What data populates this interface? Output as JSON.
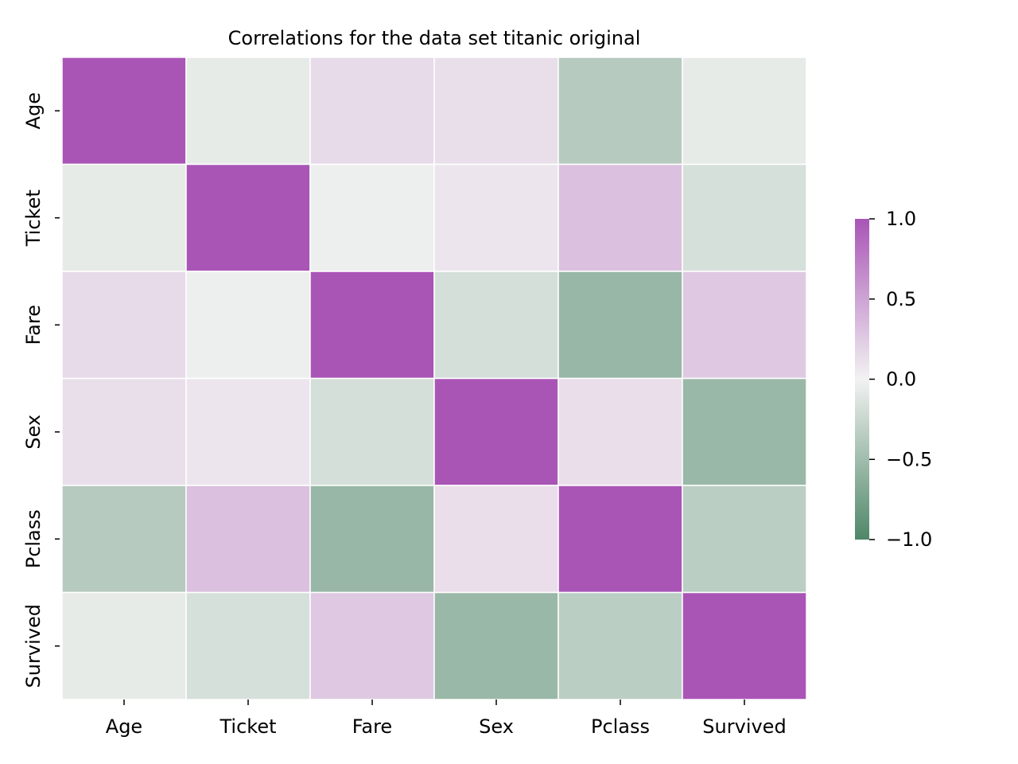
{
  "chart_data": {
    "type": "heatmap",
    "title": "Correlations for the data set titanic original",
    "row_labels": [
      "Age",
      "Ticket",
      "Fare",
      "Sex",
      "Pclass",
      "Survived"
    ],
    "col_labels": [
      "Age",
      "Ticket",
      "Fare",
      "Sex",
      "Pclass",
      "Survived"
    ],
    "values": [
      [
        1.0,
        -0.07,
        0.15,
        0.12,
        -0.37,
        -0.07
      ],
      [
        -0.07,
        1.0,
        -0.03,
        0.08,
        0.32,
        -0.17
      ],
      [
        0.15,
        -0.03,
        1.0,
        -0.18,
        -0.55,
        0.26
      ],
      [
        0.12,
        0.08,
        -0.18,
        1.0,
        0.13,
        -0.54
      ],
      [
        -0.37,
        0.32,
        -0.55,
        0.13,
        1.0,
        -0.34
      ],
      [
        -0.07,
        -0.17,
        0.26,
        -0.54,
        -0.34,
        1.0
      ]
    ],
    "vmin": -1.0,
    "vmax": 1.0,
    "colormap": {
      "negative": "#4f8768",
      "center": "#f2f2f2",
      "positive": "#a955b6"
    },
    "colorbar": {
      "ticks": [
        1.0,
        0.5,
        0.0,
        -0.5,
        -1.0
      ],
      "tick_labels": [
        "1.0",
        "0.5",
        "0.0",
        "−0.5",
        "−1.0"
      ]
    }
  }
}
